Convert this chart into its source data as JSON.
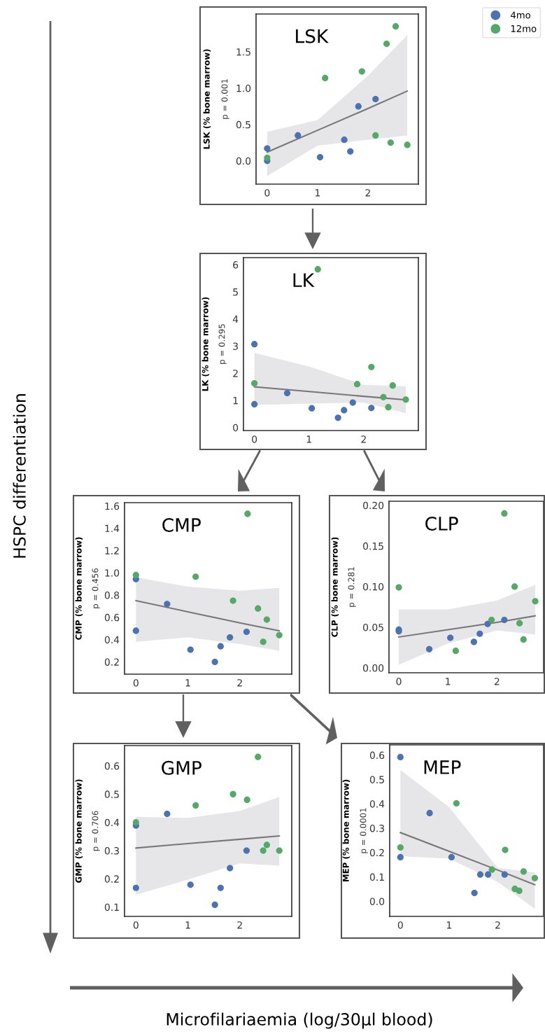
{
  "chart_data": [
    {
      "type": "scatter",
      "title": "LSK",
      "ylabel": "LSK (% bone marrow)",
      "annotations": [
        "p = 0.001"
      ],
      "xlim": [
        -0.22,
        3.0
      ],
      "xticks": [
        0,
        1,
        2
      ],
      "ylim": [
        -0.32,
        2.02
      ],
      "yticks": [
        {
          "value": 0,
          "label": "0.0"
        },
        0.5,
        {
          "value": 1,
          "label": "1.0"
        },
        1.5
      ],
      "grid": false,
      "legend": "top right",
      "marker": "circle",
      "series": [
        {
          "name": "4mo",
          "color": "#4c72b0",
          "x": [
            0,
            0,
            0.61,
            1.05,
            1.53,
            1.65,
            1.81,
            2.15
          ],
          "values": [
            0.17,
            0.0,
            0.35,
            0.05,
            0.29,
            0.13,
            0.75,
            0.85
          ]
        },
        {
          "name": "12mo",
          "color": "#55a868",
          "x": [
            0,
            1.15,
            1.88,
            2.15,
            2.37,
            2.45,
            2.55,
            2.78
          ],
          "values": [
            0.04,
            1.14,
            1.23,
            0.35,
            1.61,
            0.25,
            1.85,
            0.22
          ]
        },
        {
          "type": "line",
          "color": "#777777",
          "x": [
            0,
            1,
            2,
            2.78
          ],
          "marker": "none",
          "values": [
            0.12,
            0.42,
            0.72,
            0.96
          ],
          "lower": [
            -0.21,
            0.21,
            0.29,
            0.35
          ],
          "upper": [
            0.4,
            0.56,
            1.17,
            1.73
          ]
        }
      ]
    },
    {
      "type": "scatter",
      "title": "LK",
      "ylabel": "LK (% bone marrow)",
      "annotations": [
        "p = 0.295"
      ],
      "xlim": [
        -0.2,
        3.0
      ],
      "xticks": [
        0,
        1,
        2
      ],
      "ylim": [
        -0.11,
        6.26
      ],
      "yticks": [
        0,
        1,
        2,
        3,
        4,
        5,
        6
      ],
      "grid": false,
      "marker": "circle",
      "series": [
        {
          "color": "#4c72b0",
          "x": [
            0,
            0,
            0.6,
            1.05,
            1.53,
            1.64,
            1.8,
            2.14
          ],
          "values": [
            3.07,
            0.86,
            1.27,
            0.71,
            0.36,
            0.64,
            0.92,
            0.72
          ]
        },
        {
          "color": "#55a868",
          "x": [
            0,
            1.16,
            1.88,
            2.14,
            2.36,
            2.45,
            2.53,
            2.77
          ],
          "values": [
            1.63,
            5.83,
            1.6,
            2.23,
            1.12,
            0.75,
            1.55,
            1.03
          ]
        },
        {
          "type": "line",
          "color": "#777777",
          "x": [
            0,
            1,
            2,
            2.77
          ],
          "marker": "none",
          "values": [
            1.5,
            1.33,
            1.15,
            1.02
          ],
          "lower": [
            0.83,
            0.88,
            0.92,
            0.53
          ],
          "upper": [
            2.75,
            2.25,
            1.57,
            1.52
          ]
        }
      ]
    },
    {
      "type": "scatter",
      "title": "CMP",
      "ylabel": "CMP (% bone marrow)",
      "annotations": [
        "p = 0.456"
      ],
      "xlim": [
        -0.22,
        3.0
      ],
      "xticks": [
        0,
        1,
        2
      ],
      "ylim": [
        0.09,
        1.63
      ],
      "yticks": [
        0.2,
        0.4,
        0.6,
        0.8,
        {
          "value": 1,
          "label": "1.0"
        },
        1.2,
        1.4,
        1.6
      ],
      "grid": false,
      "marker": "circle",
      "series": [
        {
          "color": "#4c72b0",
          "x": [
            0,
            0,
            0.6,
            1.05,
            1.52,
            1.63,
            1.81,
            2.13
          ],
          "values": [
            0.944,
            0.48,
            0.72,
            0.31,
            0.2,
            0.34,
            0.42,
            0.47
          ]
        },
        {
          "color": "#55a868",
          "x": [
            0,
            1.15,
            1.87,
            2.15,
            2.35,
            2.45,
            2.52,
            2.76
          ],
          "values": [
            0.98,
            0.965,
            0.75,
            1.53,
            0.68,
            0.38,
            0.58,
            0.44
          ]
        },
        {
          "type": "line",
          "color": "#777777",
          "x": [
            0,
            1,
            2,
            2.76
          ],
          "marker": "none",
          "values": [
            0.75,
            0.65,
            0.55,
            0.48
          ],
          "lower": [
            0.38,
            0.42,
            0.36,
            0.3
          ],
          "upper": [
            0.96,
            0.875,
            0.84,
            0.865
          ]
        }
      ]
    },
    {
      "type": "scatter",
      "title": "CLP",
      "ylabel": "CLP (% bone marrow)",
      "annotations": [
        "p = 0.281"
      ],
      "xlim": [
        -0.2,
        2.95
      ],
      "xticks": [
        0,
        1,
        2
      ],
      "ylim": [
        -0.006,
        0.205
      ],
      "yticks": [
        {
          "value": 0,
          "label": "0.00"
        },
        0.05,
        {
          "value": 0.1,
          "label": "0.10"
        },
        0.15,
        {
          "value": 0.2,
          "label": "0.20"
        }
      ],
      "grid": false,
      "marker": "circle",
      "series": [
        {
          "color": "#4c72b0",
          "x": [
            0,
            0,
            0.62,
            1.05,
            1.53,
            1.65,
            1.81,
            2.15
          ],
          "values": [
            0.047,
            0.045,
            0.023,
            0.037,
            0.032,
            0.042,
            0.054,
            0.059
          ]
        },
        {
          "color": "#55a868",
          "x": [
            0,
            1.16,
            1.89,
            2.15,
            2.36,
            2.46,
            2.54,
            2.78
          ],
          "values": [
            0.099,
            0.021,
            0.059,
            0.19,
            0.1,
            0.055,
            0.035,
            0.082
          ]
        },
        {
          "type": "line",
          "color": "#777777",
          "x": [
            0,
            1,
            2,
            2.78
          ],
          "marker": "none",
          "values": [
            0.038,
            0.047,
            0.056,
            0.064
          ],
          "lower": [
            0.004,
            0.03,
            0.046,
            0.041
          ],
          "upper": [
            0.072,
            0.072,
            0.083,
            0.102
          ]
        }
      ]
    },
    {
      "type": "scatter",
      "title": "GMP",
      "ylabel": "GMP (% bone marrow)",
      "annotations": [
        "p = 0.706"
      ],
      "xlim": [
        -0.22,
        3.0
      ],
      "xticks": [
        0,
        1,
        2
      ],
      "ylim": [
        0.067,
        0.672
      ],
      "yticks": [
        0.1,
        0.2,
        0.3,
        0.4,
        0.5,
        0.6
      ],
      "grid": false,
      "marker": "circle",
      "series": [
        {
          "color": "#4c72b0",
          "x": [
            0,
            0,
            0.6,
            1.05,
            1.52,
            1.63,
            1.81,
            2.13
          ],
          "values": [
            0.389,
            0.168,
            0.43,
            0.179,
            0.108,
            0.168,
            0.238,
            0.3
          ]
        },
        {
          "color": "#55a868",
          "x": [
            0,
            1.15,
            1.87,
            2.14,
            2.35,
            2.45,
            2.52,
            2.76
          ],
          "values": [
            0.4,
            0.46,
            0.5,
            0.48,
            0.632,
            0.3,
            0.32,
            0.3
          ]
        },
        {
          "type": "line",
          "color": "#777777",
          "x": [
            0,
            1,
            2,
            2.76
          ],
          "marker": "none",
          "values": [
            0.309,
            0.325,
            0.34,
            0.352
          ],
          "lower": [
            0.144,
            0.197,
            0.255,
            0.247
          ],
          "upper": [
            0.42,
            0.416,
            0.44,
            0.49
          ]
        }
      ]
    },
    {
      "type": "scatter",
      "title": "MEP",
      "ylabel": "MEP (% bone marrow)",
      "annotations": [
        "p = 0.0001"
      ],
      "xlim": [
        -0.22,
        2.94
      ],
      "xticks": [
        0,
        1,
        2
      ],
      "ylim": [
        -0.062,
        0.642
      ],
      "yticks": [
        {
          "value": 0,
          "label": "0.0"
        },
        0.1,
        0.2,
        0.3,
        0.4,
        0.5,
        0.6
      ],
      "grid": false,
      "marker": "circle",
      "series": [
        {
          "color": "#4c72b0",
          "x": [
            0,
            0,
            0.6,
            1.05,
            1.52,
            1.64,
            1.8,
            2.14
          ],
          "values": [
            0.592,
            0.181,
            0.362,
            0.181,
            0.034,
            0.11,
            0.11,
            0.11
          ]
        },
        {
          "color": "#55a868",
          "x": [
            0,
            1.15,
            1.88,
            2.15,
            2.35,
            2.44,
            2.53,
            2.76
          ],
          "values": [
            0.221,
            0.402,
            0.13,
            0.211,
            0.051,
            0.043,
            0.122,
            0.095
          ]
        },
        {
          "type": "line",
          "color": "#777777",
          "x": [
            0,
            1,
            2,
            2.76
          ],
          "marker": "none",
          "values": [
            0.282,
            0.205,
            0.128,
            0.068
          ],
          "lower": [
            0.185,
            0.175,
            0.079,
            -0.031
          ],
          "upper": [
            0.539,
            0.386,
            0.137,
            0.118
          ]
        }
      ]
    },
    {
      "type": "other",
      "annotations": [
        "HSPC differentiation",
        "Microfilariaemia (log/30µl blood)"
      ]
    }
  ]
}
